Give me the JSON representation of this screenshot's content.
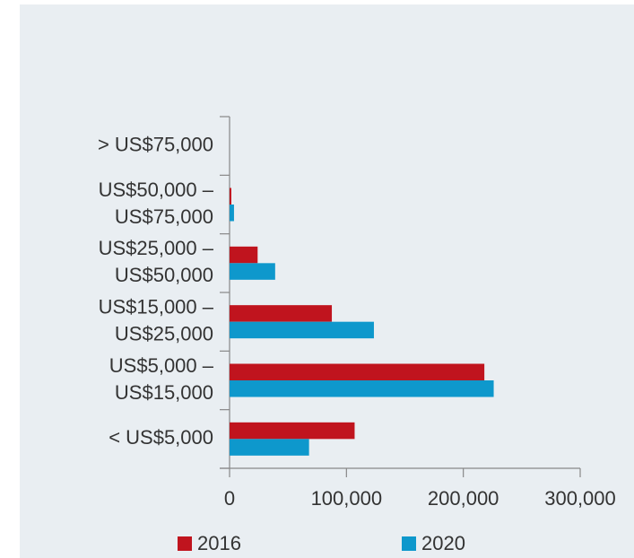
{
  "chart_data": {
    "type": "bar",
    "orientation": "horizontal",
    "categories": [
      [
        "> US$75,000"
      ],
      [
        "US$50,000 –",
        "US$75,000"
      ],
      [
        "US$25,000 –",
        "US$50,000"
      ],
      [
        "US$15,000 –",
        "US$25,000"
      ],
      [
        "US$5,000 –",
        "US$15,000"
      ],
      [
        "< US$5,000"
      ]
    ],
    "series": [
      {
        "name": "2016",
        "color": "#c0141e",
        "values": [
          0,
          1500,
          24000,
          87500,
          218000,
          107000
        ]
      },
      {
        "name": "2020",
        "color": "#0e98cc",
        "values": [
          0,
          3800,
          39000,
          123500,
          226000,
          68000
        ]
      }
    ],
    "xlim": [
      0,
      300000
    ],
    "xticks": [
      0,
      {
        "value": 100000,
        "label": "100,000"
      },
      {
        "value": 200000,
        "label": "200,000"
      },
      {
        "value": 300000,
        "label": "300,000"
      }
    ],
    "grid": false
  }
}
